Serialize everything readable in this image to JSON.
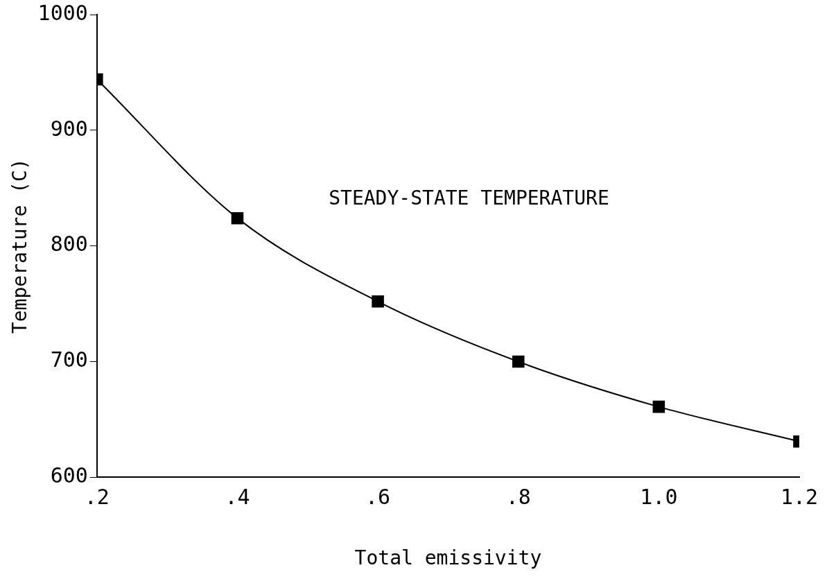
{
  "chart_data": {
    "type": "line",
    "xlabel": "Total emissivity",
    "ylabel": "Temperature (C)",
    "annotations": [
      "STEADY-STATE TEMPERATURE"
    ],
    "x": [
      0.2,
      0.4,
      0.6,
      0.8,
      1.0,
      1.2
    ],
    "series": [
      {
        "color": "#000000",
        "values": [
          944,
          824,
          752,
          700,
          661,
          631
        ]
      }
    ],
    "xlim": [
      0.2,
      1.2
    ],
    "xticks": [
      {
        "value": 0.2,
        "label": ".2"
      },
      {
        "value": 0.4,
        "label": ".4"
      },
      {
        "value": 0.6,
        "label": ".6"
      },
      {
        "value": 0.8,
        "label": ".8"
      },
      {
        "value": 1.0,
        "label": "1.0"
      },
      {
        "value": 1.2,
        "label": "1.2"
      }
    ],
    "ylim": [
      600,
      1000
    ],
    "yticks": [
      600,
      700,
      800,
      900,
      1000
    ],
    "grid": false,
    "legend": false,
    "marker": "square",
    "line_style": "solid"
  }
}
